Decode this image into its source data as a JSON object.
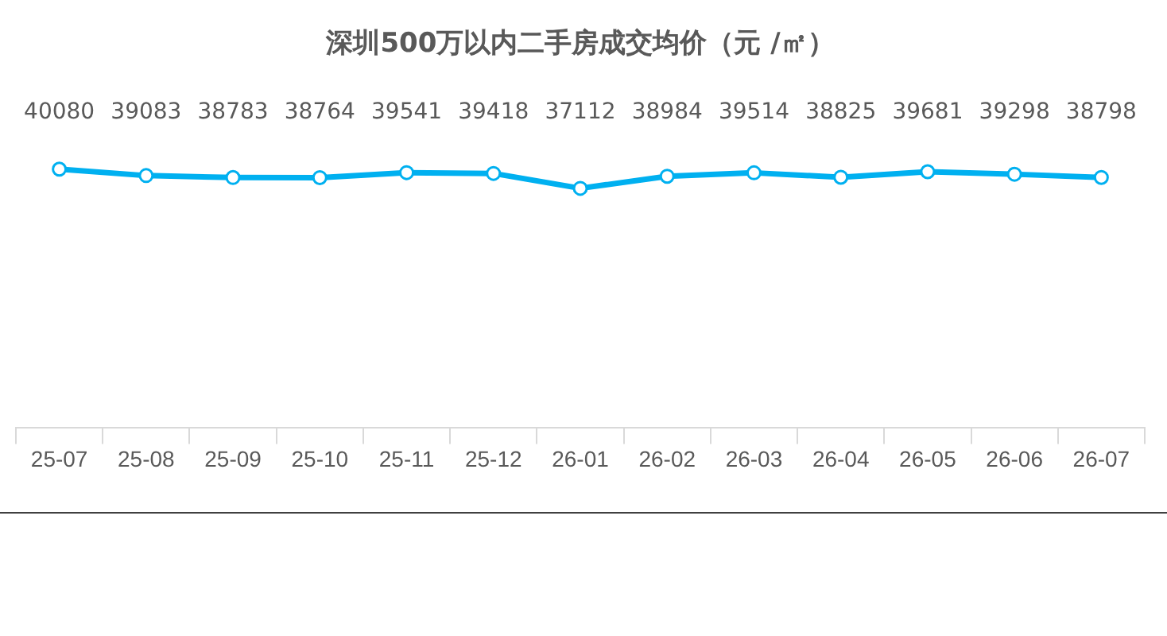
{
  "chart_data": {
    "type": "line",
    "title": "深圳500万以内二手房成交均价（元 /㎡）",
    "categories": [
      "25-07",
      "25-08",
      "25-09",
      "25-10",
      "25-11",
      "25-12",
      "26-01",
      "26-02",
      "26-03",
      "26-04",
      "26-05",
      "26-06",
      "26-07"
    ],
    "series": [
      {
        "color": "#00b0f0",
        "values": [
          40080,
          39083,
          38783,
          38764,
          39541,
          39418,
          37112,
          38984,
          39514,
          38825,
          39681,
          39298,
          38798
        ]
      }
    ],
    "data_labels": true,
    "marker": "circle",
    "line_style": "solid",
    "grid": false,
    "legend": false
  }
}
